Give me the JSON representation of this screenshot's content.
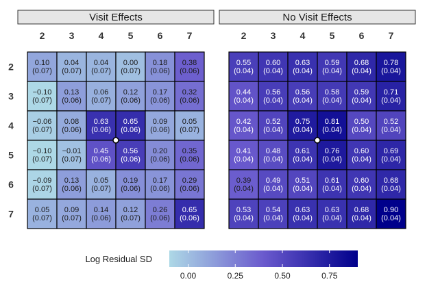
{
  "chart_data": {
    "type": "heatmap",
    "columns": [
      "2",
      "3",
      "4",
      "5",
      "6",
      "7"
    ],
    "rows": [
      "2",
      "3",
      "4",
      "5",
      "6",
      "7"
    ],
    "panels": [
      {
        "title": "Visit Effects",
        "marker": {
          "row": "4",
          "between_columns": [
            "4",
            "5"
          ]
        },
        "values": [
          [
            "0.10",
            "0.04",
            "0.04",
            "0.00",
            "0.18",
            "0.38"
          ],
          [
            "−0.10",
            "0.13",
            "0.06",
            "0.12",
            "0.17",
            "0.32"
          ],
          [
            "−0.06",
            "0.08",
            "0.63",
            "0.65",
            "0.09",
            "0.05"
          ],
          [
            "−0.10",
            "−0.01",
            "0.45",
            "0.56",
            "0.20",
            "0.35"
          ],
          [
            "−0.09",
            "0.13",
            "0.05",
            "0.19",
            "0.17",
            "0.29"
          ],
          [
            "0.05",
            "0.09",
            "0.14",
            "0.12",
            "0.26",
            "0.65"
          ]
        ],
        "se": [
          [
            "(0.07)",
            "(0.07)",
            "(0.07)",
            "(0.07)",
            "(0.06)",
            "(0.06)"
          ],
          [
            "(0.07)",
            "(0.06)",
            "(0.07)",
            "(0.06)",
            "(0.06)",
            "(0.06)"
          ],
          [
            "(0.07)",
            "(0.06)",
            "(0.06)",
            "(0.06)",
            "(0.06)",
            "(0.07)"
          ],
          [
            "(0.07)",
            "(0.07)",
            "(0.06)",
            "(0.06)",
            "(0.06)",
            "(0.06)"
          ],
          [
            "(0.07)",
            "(0.06)",
            "(0.07)",
            "(0.06)",
            "(0.06)",
            "(0.06)"
          ],
          [
            "(0.07)",
            "(0.07)",
            "(0.06)",
            "(0.07)",
            "(0.06)",
            "(0.06)"
          ]
        ]
      },
      {
        "title": "No Visit Effects",
        "marker": {
          "row": "4",
          "between_columns": [
            "4",
            "5"
          ]
        },
        "values": [
          [
            "0.55",
            "0.60",
            "0.63",
            "0.59",
            "0.68",
            "0.78"
          ],
          [
            "0.44",
            "0.56",
            "0.56",
            "0.58",
            "0.59",
            "0.71"
          ],
          [
            "0.42",
            "0.52",
            "0.75",
            "0.81",
            "0.50",
            "0.52"
          ],
          [
            "0.41",
            "0.48",
            "0.61",
            "0.76",
            "0.60",
            "0.69"
          ],
          [
            "0.39",
            "0.49",
            "0.51",
            "0.61",
            "0.60",
            "0.68"
          ],
          [
            "0.53",
            "0.54",
            "0.63",
            "0.63",
            "0.68",
            "0.90"
          ]
        ],
        "se": [
          [
            "(0.04)",
            "(0.04)",
            "(0.04)",
            "(0.04)",
            "(0.04)",
            "(0.04)"
          ],
          [
            "(0.04)",
            "(0.04)",
            "(0.04)",
            "(0.04)",
            "(0.04)",
            "(0.04)"
          ],
          [
            "(0.04)",
            "(0.04)",
            "(0.04)",
            "(0.04)",
            "(0.04)",
            "(0.04)"
          ],
          [
            "(0.04)",
            "(0.04)",
            "(0.04)",
            "(0.04)",
            "(0.04)",
            "(0.04)"
          ],
          [
            "(0.04)",
            "(0.04)",
            "(0.04)",
            "(0.04)",
            "(0.04)",
            "(0.04)"
          ],
          [
            "(0.04)",
            "(0.04)",
            "(0.04)",
            "(0.04)",
            "(0.04)",
            "(0.04)"
          ]
        ]
      }
    ],
    "legend": {
      "title": "Log Residual SD",
      "ticks": [
        "0.00",
        "0.25",
        "0.50",
        "0.75"
      ],
      "tick_values": [
        0,
        0.25,
        0.5,
        0.75
      ],
      "range": [
        -0.1,
        0.9
      ],
      "placement": "bottom-center"
    },
    "color_scale": {
      "low": "#add8e6",
      "mid": "#6a5acd",
      "high": "#00008b"
    },
    "strip_background": "#e6e6e6"
  }
}
